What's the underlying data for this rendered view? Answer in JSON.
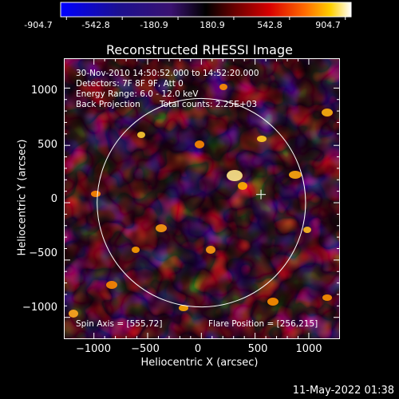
{
  "colorbar": {
    "ticks": [
      "-904.7",
      "-542.8",
      "-180.9",
      "180.9",
      "542.8",
      "904.7"
    ],
    "min": -904.7,
    "max": 904.7
  },
  "image": {
    "title": "Reconstructed RHESSI Image",
    "annotations": {
      "time_range": "30-Nov-2010 14:50:52.000 to 14:52:20.000",
      "detectors": "Detectors: 7F 8F 9F, Att 0",
      "energy": "Energy Range: 6.0 - 12.0 keV",
      "method": "Back Projection",
      "counts": "Total counts: 2.25E+03",
      "spin_axis": "Spin Axis = [555,72]",
      "flare_position": "Flare Position = [256,215]"
    },
    "xlabel": "Heliocentric X (arcsec)",
    "ylabel": "Heliocentric Y (arcsec)",
    "xticks": [
      {
        "label": "−1000",
        "value": -1000
      },
      {
        "label": "−500",
        "value": -500
      },
      {
        "label": "0",
        "value": 0
      },
      {
        "label": "500",
        "value": 500
      },
      {
        "label": "1000",
        "value": 1000
      }
    ],
    "yticks": [
      {
        "label": "1000",
        "value": 1000
      },
      {
        "label": "500",
        "value": 500
      },
      {
        "label": "0",
        "value": 0
      },
      {
        "label": "−500",
        "value": -500
      },
      {
        "label": "−1000",
        "value": -1000
      }
    ],
    "xlim": [
      -1280,
      1290
    ],
    "ylim": [
      -1190,
      1260
    ],
    "solar_disk_radius_arcsec": 970,
    "marker_position_arcsec": [
      555,
      72
    ]
  },
  "footer": {
    "timestamp": "11-May-2022 01:38"
  },
  "colors": {
    "background": "#000000",
    "foreground": "#ffffff"
  }
}
